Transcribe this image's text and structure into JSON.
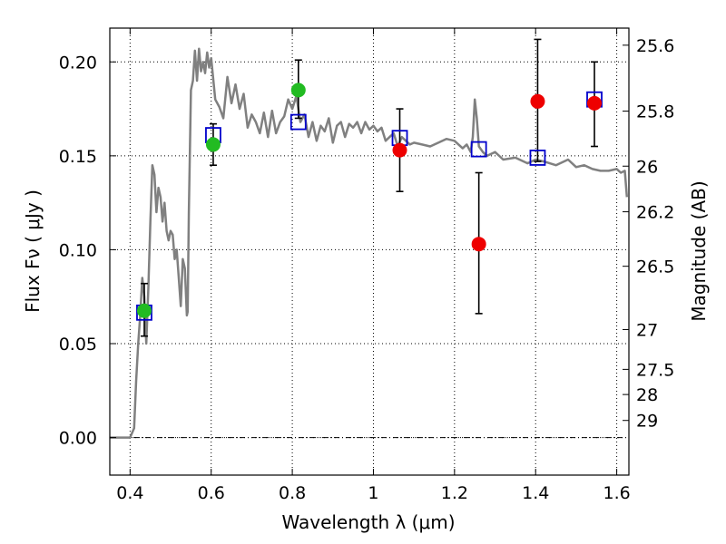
{
  "chart_data": {
    "type": "scatter",
    "xlabel": "Wavelength  λ (μm)",
    "ylabel": "Flux  Fν  ( μJy )",
    "y2label": "Magnitude (AB)",
    "xlim": [
      0.35,
      1.63
    ],
    "ylim": [
      -0.02,
      0.218
    ],
    "grid": true,
    "x_ticks": [
      0.4,
      0.6,
      0.8,
      1.0,
      1.2,
      1.4,
      1.6
    ],
    "x_tick_labels": [
      "0.4",
      "0.6",
      "0.8",
      "1",
      "1.2",
      "1.4",
      "1.6"
    ],
    "y_ticks": [
      0.0,
      0.05,
      0.1,
      0.15,
      0.2
    ],
    "y_tick_labels": [
      "0.00",
      "0.05",
      "0.10",
      "0.15",
      "0.20"
    ],
    "y2_ticks": [
      {
        "label": "25.6",
        "flux": 0.2089
      },
      {
        "label": "25.8",
        "flux": 0.1738
      },
      {
        "label": "26",
        "flux": 0.1445
      },
      {
        "label": "26.2",
        "flux": 0.1202
      },
      {
        "label": "26.5",
        "flux": 0.0912
      },
      {
        "label": "27",
        "flux": 0.0575
      },
      {
        "label": "27.5",
        "flux": 0.0363
      },
      {
        "label": "28",
        "flux": 0.0229
      },
      {
        "label": "29",
        "flux": 0.0091
      }
    ],
    "colors": {
      "model": "#808080",
      "model_points": "#0000cc",
      "green_points": "#22bb22",
      "red_points": "#ee0000",
      "error_bars": "#000000"
    },
    "series": [
      {
        "kind": "line",
        "x": [
          0.35,
          0.4,
          0.41,
          0.415,
          0.42,
          0.425,
          0.43,
          0.435,
          0.44,
          0.445,
          0.45,
          0.455,
          0.46,
          0.465,
          0.47,
          0.475,
          0.48,
          0.485,
          0.49,
          0.495,
          0.5,
          0.505,
          0.51,
          0.515,
          0.52,
          0.525,
          0.53,
          0.535,
          0.54,
          0.542,
          0.545,
          0.55,
          0.555,
          0.56,
          0.565,
          0.57,
          0.575,
          0.58,
          0.585,
          0.59,
          0.595,
          0.6,
          0.61,
          0.62,
          0.63,
          0.64,
          0.65,
          0.66,
          0.67,
          0.68,
          0.69,
          0.7,
          0.71,
          0.72,
          0.73,
          0.74,
          0.75,
          0.76,
          0.77,
          0.78,
          0.79,
          0.8,
          0.81,
          0.82,
          0.83,
          0.84,
          0.85,
          0.86,
          0.87,
          0.88,
          0.89,
          0.9,
          0.91,
          0.92,
          0.93,
          0.94,
          0.95,
          0.96,
          0.97,
          0.98,
          0.99,
          1.0,
          1.01,
          1.02,
          1.03,
          1.04,
          1.05,
          1.06,
          1.07,
          1.08,
          1.09,
          1.1,
          1.12,
          1.14,
          1.16,
          1.18,
          1.2,
          1.22,
          1.23,
          1.24,
          1.245,
          1.25,
          1.255,
          1.26,
          1.27,
          1.28,
          1.3,
          1.32,
          1.35,
          1.38,
          1.4,
          1.42,
          1.45,
          1.48,
          1.5,
          1.52,
          1.54,
          1.56,
          1.58,
          1.6,
          1.61,
          1.62,
          1.625
        ],
        "y": [
          0.0,
          0.0,
          0.005,
          0.03,
          0.05,
          0.065,
          0.085,
          0.075,
          0.05,
          0.08,
          0.115,
          0.145,
          0.14,
          0.12,
          0.133,
          0.128,
          0.115,
          0.125,
          0.11,
          0.105,
          0.11,
          0.108,
          0.095,
          0.1,
          0.085,
          0.07,
          0.095,
          0.09,
          0.065,
          0.067,
          0.12,
          0.185,
          0.19,
          0.206,
          0.19,
          0.207,
          0.195,
          0.2,
          0.194,
          0.205,
          0.197,
          0.202,
          0.18,
          0.176,
          0.17,
          0.192,
          0.178,
          0.188,
          0.175,
          0.183,
          0.165,
          0.172,
          0.168,
          0.162,
          0.173,
          0.16,
          0.174,
          0.162,
          0.168,
          0.171,
          0.18,
          0.175,
          0.182,
          0.168,
          0.172,
          0.16,
          0.168,
          0.158,
          0.166,
          0.163,
          0.17,
          0.157,
          0.166,
          0.168,
          0.16,
          0.167,
          0.165,
          0.168,
          0.162,
          0.168,
          0.164,
          0.166,
          0.163,
          0.165,
          0.158,
          0.16,
          0.162,
          0.155,
          0.16,
          0.158,
          0.156,
          0.157,
          0.156,
          0.155,
          0.157,
          0.159,
          0.158,
          0.154,
          0.156,
          0.152,
          0.16,
          0.18,
          0.17,
          0.155,
          0.152,
          0.15,
          0.152,
          0.148,
          0.149,
          0.146,
          0.148,
          0.147,
          0.145,
          0.148,
          0.144,
          0.145,
          0.143,
          0.142,
          0.142,
          0.143,
          0.141,
          0.142,
          0.128
        ]
      },
      {
        "kind": "squares",
        "x": [
          0.435,
          0.605,
          0.815,
          1.065,
          1.26,
          1.405,
          1.545
        ],
        "y": [
          0.0665,
          0.161,
          0.168,
          0.1595,
          0.1535,
          0.149,
          0.18
        ]
      },
      {
        "kind": "green_points",
        "x": [
          0.435,
          0.605,
          0.815
        ],
        "y": [
          0.0675,
          0.156,
          0.185
        ],
        "yerr_low": [
          0.054,
          0.145,
          0.17
        ],
        "yerr_high": [
          0.082,
          0.167,
          0.201
        ]
      },
      {
        "kind": "red_points",
        "x": [
          1.065,
          1.26,
          1.405,
          1.545
        ],
        "y": [
          0.153,
          0.103,
          0.179,
          0.178
        ],
        "yerr_low": [
          0.131,
          0.066,
          0.147,
          0.155
        ],
        "yerr_high": [
          0.175,
          0.141,
          0.212,
          0.2
        ]
      }
    ]
  }
}
